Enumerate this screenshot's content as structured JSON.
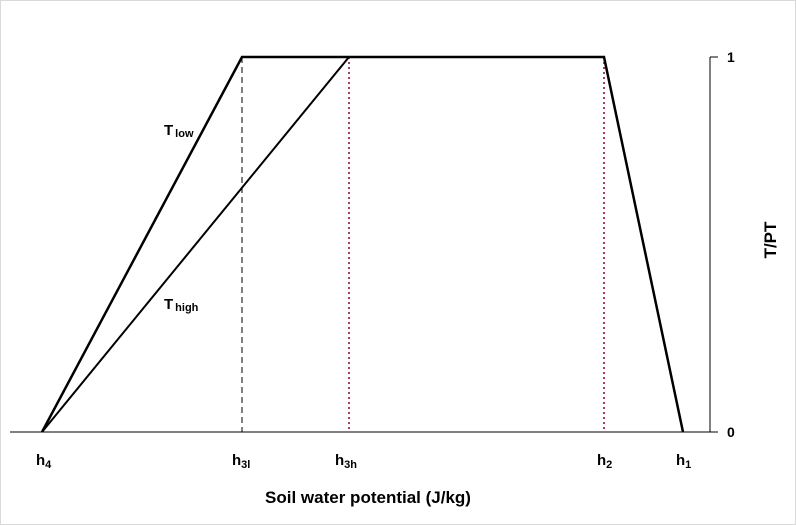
{
  "x_axis": {
    "title": "Soil water potential (J/kg)",
    "labels": [
      {
        "base": "h",
        "sub": "4"
      },
      {
        "base": "h",
        "sub": "3l"
      },
      {
        "base": "h",
        "sub": "3h"
      },
      {
        "base": "h",
        "sub": "2"
      },
      {
        "base": "h",
        "sub": "1"
      }
    ]
  },
  "y_axis": {
    "title": "T/PT",
    "ticks": [
      "1",
      "0"
    ]
  },
  "curves": [
    {
      "base": "T",
      "sub": "low"
    },
    {
      "base": "T",
      "sub": "high"
    }
  ]
}
